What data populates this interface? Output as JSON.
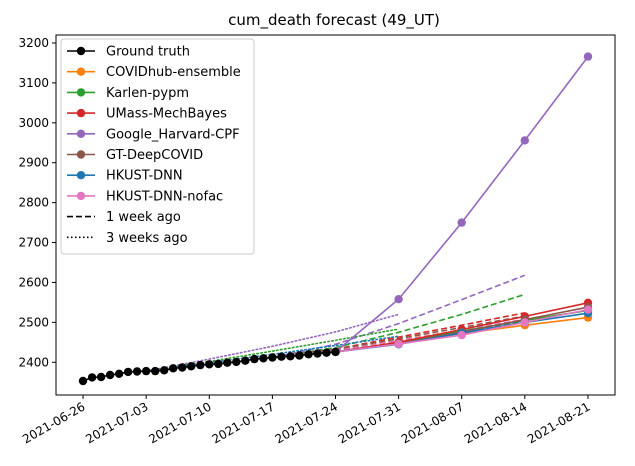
{
  "chart_data": {
    "type": "line",
    "title": "cum_death forecast (49_UT)",
    "xlabel": "",
    "ylabel": "",
    "x_ticks": [
      "2021-06-26",
      "2021-07-03",
      "2021-07-10",
      "2021-07-17",
      "2021-07-24",
      "2021-07-31",
      "2021-08-07",
      "2021-08-14",
      "2021-08-21"
    ],
    "y_ticks": [
      2400,
      2500,
      2600,
      2700,
      2800,
      2900,
      3000,
      3100,
      3200
    ],
    "xlim": [
      "2021-06-23",
      "2021-08-24"
    ],
    "ylim": [
      2318,
      3220
    ],
    "legend_position": "upper left",
    "grid": false,
    "series": [
      {
        "name": "Ground truth",
        "color": "#000000",
        "style": "solid",
        "marker": true,
        "x": [
          "2021-06-26",
          "2021-06-27",
          "2021-06-28",
          "2021-06-29",
          "2021-06-30",
          "2021-07-01",
          "2021-07-02",
          "2021-07-03",
          "2021-07-04",
          "2021-07-05",
          "2021-07-06",
          "2021-07-07",
          "2021-07-08",
          "2021-07-09",
          "2021-07-10",
          "2021-07-11",
          "2021-07-12",
          "2021-07-13",
          "2021-07-14",
          "2021-07-15",
          "2021-07-16",
          "2021-07-17",
          "2021-07-18",
          "2021-07-19",
          "2021-07-20",
          "2021-07-21",
          "2021-07-22",
          "2021-07-23",
          "2021-07-24"
        ],
        "y": [
          2353,
          2362,
          2363,
          2368,
          2371,
          2376,
          2377,
          2378,
          2378,
          2380,
          2385,
          2387,
          2390,
          2393,
          2395,
          2396,
          2399,
          2401,
          2404,
          2408,
          2410,
          2412,
          2414,
          2415,
          2417,
          2420,
          2422,
          2424,
          2426
        ]
      },
      {
        "name": "COVIDhub-ensemble",
        "color": "#ff7f0e",
        "style": "solid",
        "marker": true,
        "x": [
          "2021-07-24",
          "2021-07-31",
          "2021-08-07",
          "2021-08-14",
          "2021-08-21"
        ],
        "y": [
          2426,
          2448,
          2472,
          2493,
          2512
        ]
      },
      {
        "name": "Karlen-pypm",
        "color": "#2ca02c",
        "style": "solid",
        "marker": true,
        "x": [
          "2021-07-24",
          "2021-07-31",
          "2021-08-07",
          "2021-08-14",
          "2021-08-21"
        ],
        "y": [
          2426,
          2449,
          2478,
          2505,
          2530
        ]
      },
      {
        "name": "UMass-MechBayes",
        "color": "#d62728",
        "style": "solid",
        "marker": true,
        "x": [
          "2021-07-24",
          "2021-07-31",
          "2021-08-07",
          "2021-08-14",
          "2021-08-21"
        ],
        "y": [
          2426,
          2450,
          2482,
          2515,
          2549
        ]
      },
      {
        "name": "Google_Harvard-CPF",
        "color": "#9467bd",
        "style": "solid",
        "marker": true,
        "x": [
          "2021-07-24",
          "2021-07-31",
          "2021-08-07",
          "2021-08-14",
          "2021-08-21"
        ],
        "y": [
          2426,
          2558,
          2750,
          2956,
          3166
        ]
      },
      {
        "name": "GT-DeepCOVID",
        "color": "#8c564b",
        "style": "solid",
        "marker": true,
        "x": [
          "2021-07-24",
          "2021-07-31",
          "2021-08-07",
          "2021-08-14",
          "2021-08-21"
        ],
        "y": [
          2426,
          2446,
          2476,
          2507,
          2538
        ]
      },
      {
        "name": "HKUST-DNN",
        "color": "#1f77b4",
        "style": "solid",
        "marker": true,
        "x": [
          "2021-07-24",
          "2021-07-31",
          "2021-08-07",
          "2021-08-14",
          "2021-08-21"
        ],
        "y": [
          2426,
          2445,
          2473,
          2500,
          2523
        ]
      },
      {
        "name": "HKUST-DNN-nofac",
        "color": "#e377c2",
        "style": "solid",
        "marker": true,
        "x": [
          "2021-07-24",
          "2021-07-31",
          "2021-08-07",
          "2021-08-14",
          "2021-08-21"
        ],
        "y": [
          2426,
          2446,
          2468,
          2500,
          2532
        ]
      },
      {
        "name": "",
        "color": "#ff7f0e",
        "style": "dashed",
        "marker": false,
        "x": [
          "2021-07-17",
          "2021-07-24",
          "2021-07-31",
          "2021-08-07",
          "2021-08-14"
        ],
        "y": [
          2412,
          2430,
          2455,
          2480,
          2506
        ]
      },
      {
        "name": "",
        "color": "#2ca02c",
        "style": "dashed",
        "marker": false,
        "x": [
          "2021-07-17",
          "2021-07-24",
          "2021-07-31",
          "2021-08-07",
          "2021-08-14"
        ],
        "y": [
          2412,
          2437,
          2475,
          2520,
          2570
        ]
      },
      {
        "name": "",
        "color": "#d62728",
        "style": "dashed",
        "marker": false,
        "x": [
          "2021-07-17",
          "2021-07-24",
          "2021-07-31",
          "2021-08-07",
          "2021-08-14"
        ],
        "y": [
          2412,
          2433,
          2463,
          2493,
          2524
        ]
      },
      {
        "name": "",
        "color": "#9467bd",
        "style": "dashed",
        "marker": false,
        "x": [
          "2021-07-17",
          "2021-07-24",
          "2021-07-31",
          "2021-08-07",
          "2021-08-14"
        ],
        "y": [
          2412,
          2445,
          2497,
          2557,
          2618
        ]
      },
      {
        "name": "",
        "color": "#8c564b",
        "style": "dashed",
        "marker": false,
        "x": [
          "2021-07-17",
          "2021-07-24",
          "2021-07-31",
          "2021-08-07",
          "2021-08-14"
        ],
        "y": [
          2412,
          2432,
          2459,
          2487,
          2516
        ]
      },
      {
        "name": "",
        "color": "#1f77b4",
        "style": "dashed",
        "marker": false,
        "x": [
          "2021-07-17",
          "2021-07-24",
          "2021-07-31",
          "2021-08-07",
          "2021-08-14"
        ],
        "y": [
          2412,
          2428,
          2452,
          2477,
          2503
        ]
      },
      {
        "name": "",
        "color": "#e377c2",
        "style": "dashed",
        "marker": false,
        "x": [
          "2021-07-17",
          "2021-07-24",
          "2021-07-31",
          "2021-08-07",
          "2021-08-14"
        ],
        "y": [
          2412,
          2429,
          2454,
          2480,
          2508
        ]
      },
      {
        "name": "",
        "color": "#9467bd",
        "style": "dotted",
        "marker": false,
        "x": [
          "2021-07-03",
          "2021-07-10",
          "2021-07-17",
          "2021-07-24",
          "2021-07-31"
        ],
        "y": [
          2378,
          2408,
          2440,
          2476,
          2520
        ]
      },
      {
        "name": "",
        "color": "#2ca02c",
        "style": "dotted",
        "marker": false,
        "x": [
          "2021-07-03",
          "2021-07-10",
          "2021-07-17",
          "2021-07-24",
          "2021-07-31"
        ],
        "y": [
          2378,
          2402,
          2428,
          2455,
          2483
        ]
      },
      {
        "name": "",
        "color": "#1f77b4",
        "style": "dotted",
        "marker": false,
        "x": [
          "2021-07-03",
          "2021-07-10",
          "2021-07-17",
          "2021-07-24",
          "2021-07-31"
        ],
        "y": [
          2378,
          2399,
          2420,
          2442,
          2465
        ]
      }
    ],
    "legend": [
      {
        "label": "Ground truth",
        "color": "#000000",
        "style": "solid",
        "marker": true
      },
      {
        "label": "COVIDhub-ensemble",
        "color": "#ff7f0e",
        "style": "solid",
        "marker": true
      },
      {
        "label": "Karlen-pypm",
        "color": "#2ca02c",
        "style": "solid",
        "marker": true
      },
      {
        "label": "UMass-MechBayes",
        "color": "#d62728",
        "style": "solid",
        "marker": true
      },
      {
        "label": "Google_Harvard-CPF",
        "color": "#9467bd",
        "style": "solid",
        "marker": true
      },
      {
        "label": "GT-DeepCOVID",
        "color": "#8c564b",
        "style": "solid",
        "marker": true
      },
      {
        "label": "HKUST-DNN",
        "color": "#1f77b4",
        "style": "solid",
        "marker": true
      },
      {
        "label": "HKUST-DNN-nofac",
        "color": "#e377c2",
        "style": "solid",
        "marker": true
      },
      {
        "label": "1 week ago",
        "color": "#000000",
        "style": "dashed",
        "marker": false
      },
      {
        "label": "3 weeks ago",
        "color": "#000000",
        "style": "dotted",
        "marker": false
      }
    ]
  }
}
